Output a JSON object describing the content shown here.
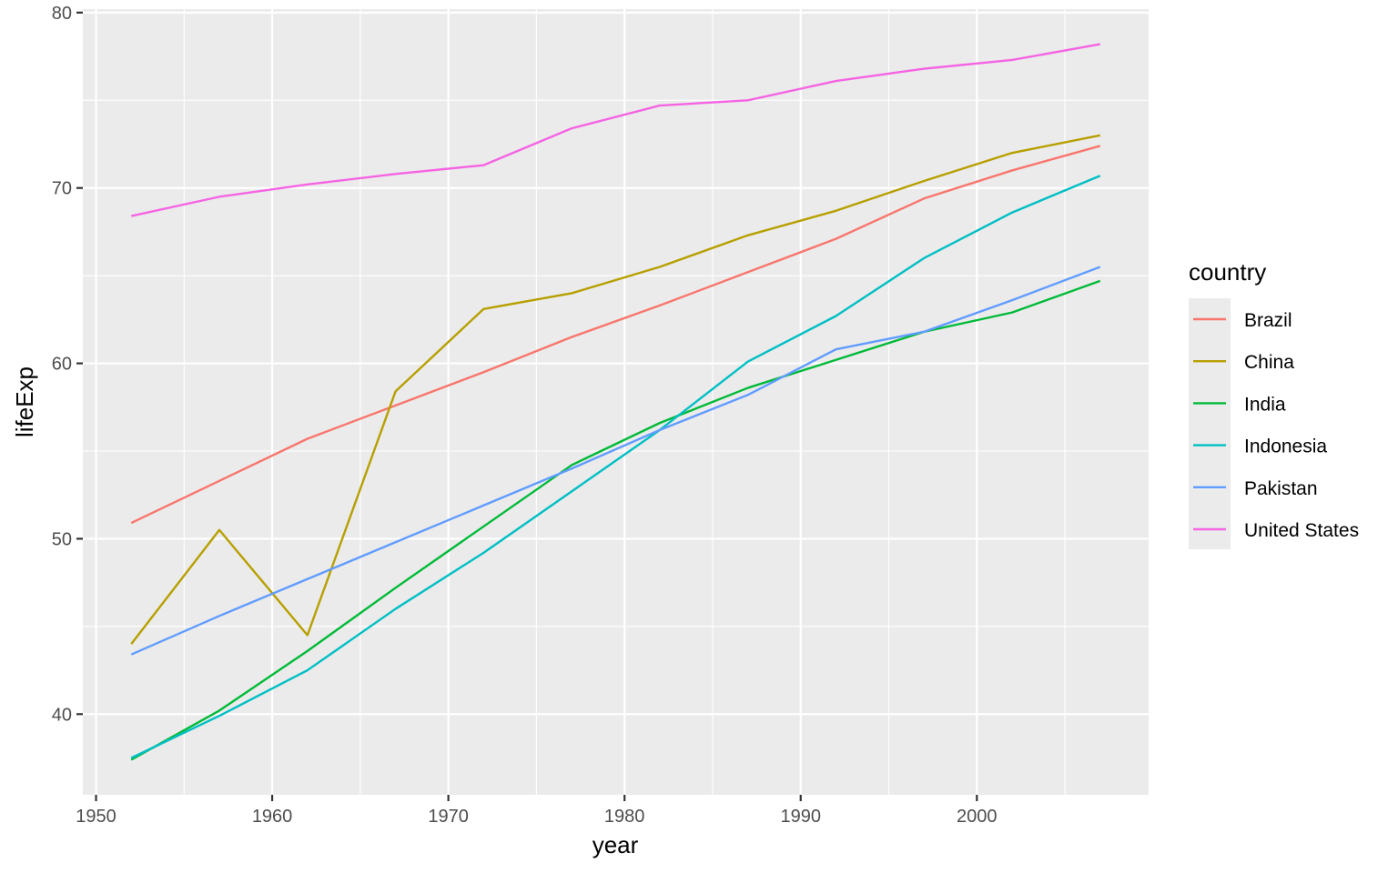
{
  "chart_data": {
    "type": "line",
    "xlabel": "year",
    "ylabel": "lifeExp",
    "xlim": [
      1949.25,
      2009.75
    ],
    "ylim": [
      35.4,
      80.2
    ],
    "x_ticks": [
      1950,
      1960,
      1970,
      1980,
      1990,
      2000
    ],
    "y_ticks": [
      40,
      50,
      60,
      70,
      80
    ],
    "x": [
      1952,
      1957,
      1962,
      1967,
      1972,
      1977,
      1982,
      1987,
      1992,
      1997,
      2002,
      2007
    ],
    "grid": true,
    "legend_title": "country",
    "legend_position": "right",
    "series": [
      {
        "name": "Brazil",
        "color": "#F8766D",
        "values": [
          50.9,
          53.3,
          55.7,
          57.6,
          59.5,
          61.5,
          63.3,
          65.2,
          67.1,
          69.4,
          71.0,
          72.4
        ]
      },
      {
        "name": "China",
        "color": "#B79F00",
        "values": [
          44.0,
          50.5,
          44.5,
          58.4,
          63.1,
          64.0,
          65.5,
          67.3,
          68.7,
          70.4,
          72.0,
          73.0
        ]
      },
      {
        "name": "India",
        "color": "#00BA38",
        "values": [
          37.4,
          40.2,
          43.6,
          47.2,
          50.7,
          54.2,
          56.6,
          58.6,
          60.2,
          61.8,
          62.9,
          64.7
        ]
      },
      {
        "name": "Indonesia",
        "color": "#00BFC4",
        "values": [
          37.5,
          39.9,
          42.5,
          46.0,
          49.2,
          52.7,
          56.2,
          60.1,
          62.7,
          66.0,
          68.6,
          70.7
        ]
      },
      {
        "name": "Pakistan",
        "color": "#619CFF",
        "values": [
          43.4,
          45.6,
          47.7,
          49.8,
          51.9,
          54.0,
          56.2,
          58.2,
          60.8,
          61.8,
          63.6,
          65.5
        ]
      },
      {
        "name": "United States",
        "color": "#F564E3",
        "values": [
          68.4,
          69.5,
          70.2,
          70.8,
          71.3,
          73.4,
          74.7,
          75.0,
          76.1,
          76.8,
          77.3,
          78.2
        ]
      }
    ]
  },
  "colors": {
    "panel_background": "#EBEBEB",
    "grid_major": "#FFFFFF",
    "axis_text": "#4D4D4D"
  }
}
